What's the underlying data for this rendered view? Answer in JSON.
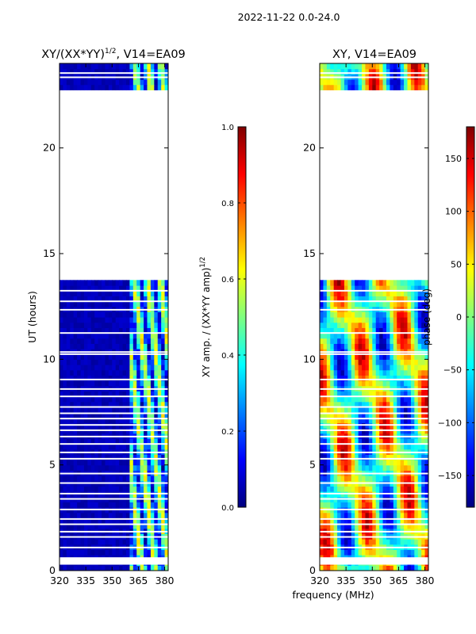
{
  "suptitle": "2022-11-22 0.0-24.0",
  "colors": {
    "jet": [
      "#00007f",
      "#0000ff",
      "#007fff",
      "#00ffff",
      "#7fff7f",
      "#ffff00",
      "#ff7f00",
      "#ff0000",
      "#7f0000"
    ],
    "flag": "#ffffff",
    "frame": "#000000"
  },
  "chart_data": [
    {
      "id": "amp",
      "type": "heatmap",
      "title_base": "XY/(XX*YY)",
      "title_exp": "1/2",
      "title_suffix": ", V14=EA09",
      "xlabel": "",
      "ylabel": "UT (hours)",
      "xlim": [
        320,
        382
      ],
      "ylim": [
        0,
        24
      ],
      "xticks": [
        320,
        335,
        350,
        365,
        380
      ],
      "yticks": [
        0,
        5,
        10,
        15,
        20
      ],
      "data_gap_hours": [
        13.8,
        22.6
      ],
      "active_band_mhz": [
        360,
        382
      ],
      "colorbar": {
        "label_base": "XY amp. / (XX*YY amp)",
        "label_exp": "1/2",
        "range": [
          0.0,
          1.0
        ],
        "ticks": [
          0.0,
          0.2,
          0.4,
          0.6,
          0.8,
          1.0
        ],
        "tick_labels": [
          "0.0",
          "0.2",
          "0.4",
          "0.6",
          "0.8",
          "1.0"
        ]
      }
    },
    {
      "id": "phase",
      "type": "heatmap",
      "title": "XY, V14=EA09",
      "xlabel": "frequency (MHz)",
      "ylabel": "",
      "xlim": [
        320,
        382
      ],
      "ylim": [
        0,
        24
      ],
      "xticks": [
        320,
        335,
        350,
        365,
        380
      ],
      "yticks": [
        0,
        5,
        10,
        15,
        20
      ],
      "data_gap_hours": [
        13.8,
        22.6
      ],
      "colorbar": {
        "label": "phase (deg)",
        "range": [
          -180,
          180
        ],
        "ticks": [
          -150,
          -100,
          -50,
          0,
          50,
          100,
          150
        ],
        "tick_labels": [
          "−150",
          "−100",
          "−50",
          "0",
          "50",
          "100",
          "150"
        ]
      }
    }
  ]
}
